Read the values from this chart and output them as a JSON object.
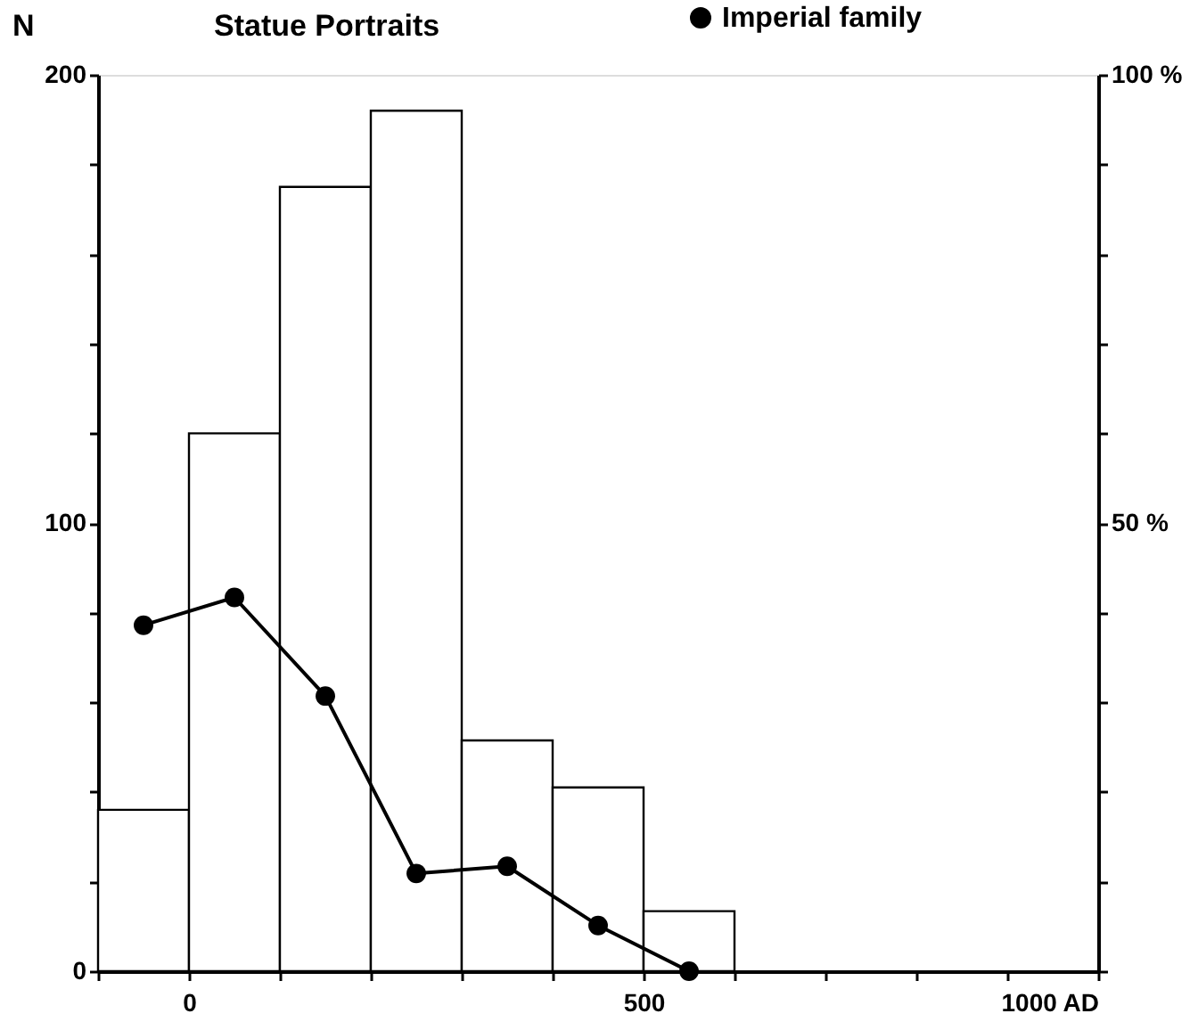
{
  "chart_data": {
    "type": "histogram",
    "title": "Statue Portraits",
    "ylabel": "N",
    "color": "#ffffff",
    "bins": [
      -100,
      0,
      100,
      200,
      300,
      400,
      500,
      600
    ],
    "values": [
      36,
      120,
      175,
      192,
      51.5,
      41,
      13.4
    ],
    "series": [
      {
        "name": "Imperial family",
        "type": "line",
        "axis": "y2",
        "color": "#000000",
        "x": [
          -50,
          50,
          150,
          250,
          350,
          450,
          550
        ],
        "values": [
          38.6,
          41.7,
          30.7,
          10.9,
          11.7,
          5.1,
          0
        ]
      }
    ],
    "xlim": [
      -100,
      1000
    ],
    "xticks": [
      {
        "value": -100,
        "label": null
      },
      0,
      {
        "value": 100,
        "label": null
      },
      {
        "value": 200,
        "label": null
      },
      {
        "value": 300,
        "label": null
      },
      {
        "value": 400,
        "label": null
      },
      500,
      {
        "value": 600,
        "label": null
      },
      {
        "value": 700,
        "label": null
      },
      {
        "value": 800,
        "label": null
      },
      {
        "value": 900,
        "label": null
      },
      {
        "value": 1000,
        "label": "1000 AD"
      }
    ],
    "ylim": [
      0,
      200
    ],
    "yticks": [
      0,
      {
        "value": 20,
        "label": null
      },
      {
        "value": 40,
        "label": null
      },
      {
        "value": 60,
        "label": null
      },
      {
        "value": 80,
        "label": null
      },
      100,
      {
        "value": 120,
        "label": null
      },
      {
        "value": 140,
        "label": null
      },
      {
        "value": 160,
        "label": null
      },
      {
        "value": 180,
        "label": null
      },
      200
    ],
    "y2lim": [
      0,
      100
    ],
    "y2ticks": [
      {
        "value": 0,
        "label": null
      },
      {
        "value": 10,
        "label": null
      },
      {
        "value": 20,
        "label": null
      },
      {
        "value": 30,
        "label": null
      },
      {
        "value": 40,
        "label": null
      },
      {
        "value": 50,
        "label": "50 %"
      },
      {
        "value": 60,
        "label": null
      },
      {
        "value": 70,
        "label": null
      },
      {
        "value": 80,
        "label": null
      },
      {
        "value": 90,
        "label": null
      },
      {
        "value": 100,
        "label": "100 %"
      }
    ],
    "grid": false,
    "legend": "top right",
    "marker": "circle",
    "line_style": "solid"
  }
}
